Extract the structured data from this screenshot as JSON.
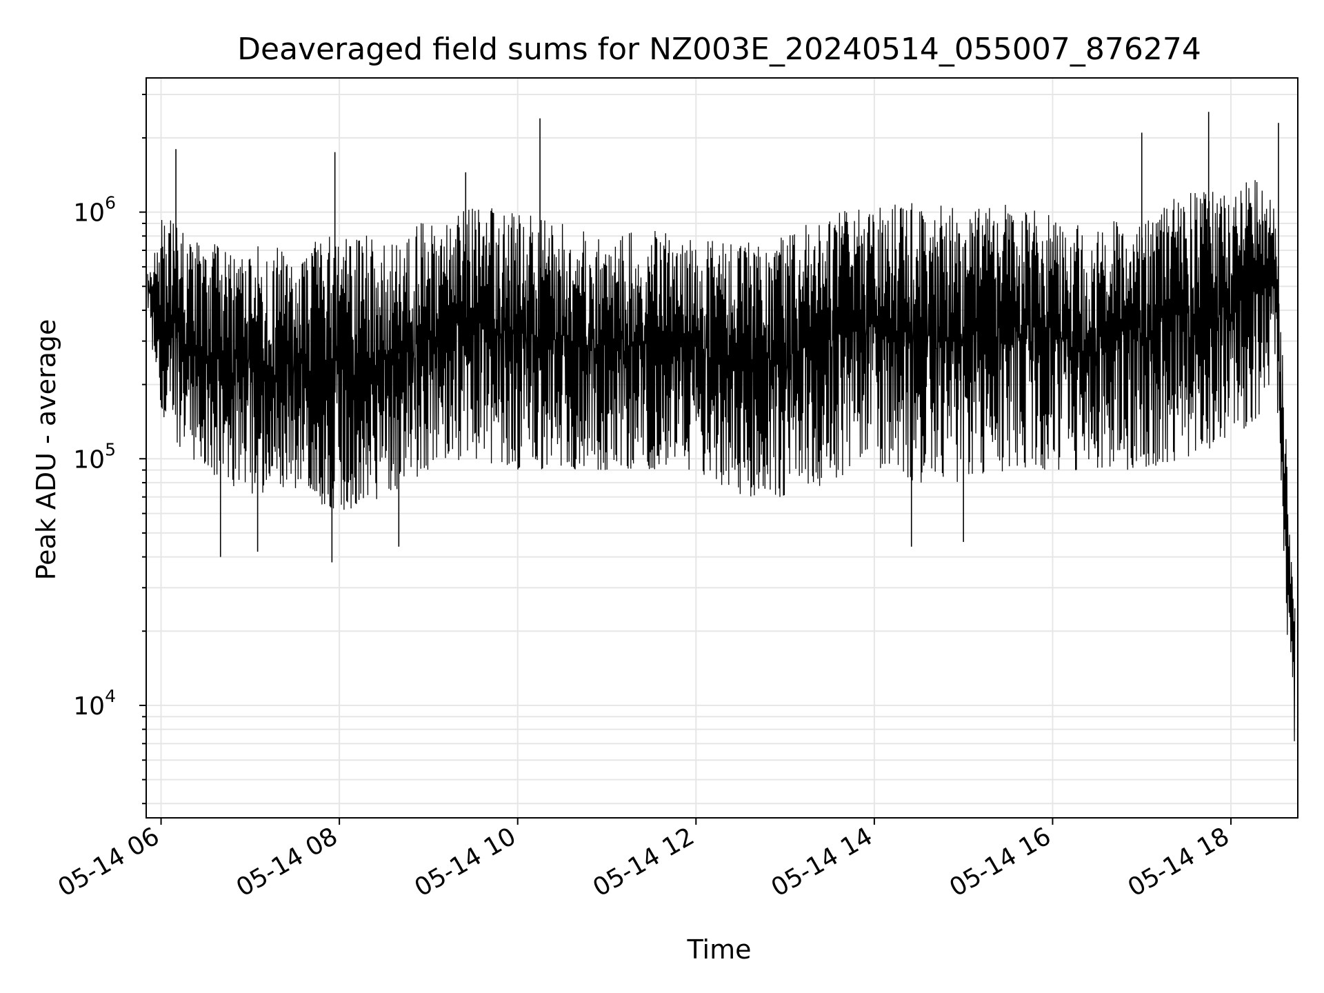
{
  "chart_data": {
    "type": "line",
    "title": "Deaveraged field sums for NZ003E_20240514_055007_876274",
    "xlabel": "Time",
    "ylabel": "Peak ADU - average",
    "yscale": "log",
    "grid": true,
    "x_range": [
      "2024-05-14 05:50",
      "2024-05-14 18:45"
    ],
    "ylim": [
      3500,
      3500000
    ],
    "x_ticks": [
      {
        "time": "2024-05-14 06:00",
        "label": "05-14 06"
      },
      {
        "time": "2024-05-14 08:00",
        "label": "05-14 08"
      },
      {
        "time": "2024-05-14 10:00",
        "label": "05-14 10"
      },
      {
        "time": "2024-05-14 12:00",
        "label": "05-14 12"
      },
      {
        "time": "2024-05-14 14:00",
        "label": "05-14 14"
      },
      {
        "time": "2024-05-14 16:00",
        "label": "05-14 16"
      },
      {
        "time": "2024-05-14 18:00",
        "label": "05-14 18"
      }
    ],
    "y_ticks": [
      {
        "value": 10000,
        "base": "10",
        "exp": "4"
      },
      {
        "value": 100000,
        "base": "10",
        "exp": "5"
      },
      {
        "value": 1000000,
        "base": "10",
        "exp": "6"
      }
    ],
    "line_color": "#000000",
    "series": [
      {
        "x": [
          "2024-05-14 05:51",
          "2024-05-14 06:00",
          "2024-05-14 06:30",
          "2024-05-14 07:00",
          "2024-05-14 07:30",
          "2024-05-14 08:00",
          "2024-05-14 08:30",
          "2024-05-14 09:00",
          "2024-05-14 09:30",
          "2024-05-14 10:00",
          "2024-05-14 10:30",
          "2024-05-14 11:00",
          "2024-05-14 11:30",
          "2024-05-14 12:00",
          "2024-05-14 12:30",
          "2024-05-14 13:00",
          "2024-05-14 13:30",
          "2024-05-14 14:00",
          "2024-05-14 14:30",
          "2024-05-14 15:00",
          "2024-05-14 15:30",
          "2024-05-14 16:00",
          "2024-05-14 16:30",
          "2024-05-14 17:00",
          "2024-05-14 17:30",
          "2024-05-14 18:00",
          "2024-05-14 18:20",
          "2024-05-14 18:30",
          "2024-05-14 18:36",
          "2024-05-14 18:40",
          "2024-05-14 18:43"
        ],
        "low": [
          420000,
          130000,
          90000,
          70000,
          70000,
          60000,
          70000,
          90000,
          100000,
          90000,
          90000,
          90000,
          90000,
          90000,
          70000,
          70000,
          80000,
          90000,
          80000,
          80000,
          90000,
          90000,
          90000,
          90000,
          100000,
          120000,
          150000,
          250000,
          30000,
          12000,
          4500
        ],
        "high": [
          600000,
          1000000,
          750000,
          750000,
          700000,
          850000,
          800000,
          950000,
          1100000,
          1000000,
          900000,
          850000,
          850000,
          800000,
          750000,
          800000,
          1000000,
          1100000,
          1100000,
          1050000,
          1100000,
          1000000,
          850000,
          1100000,
          1200000,
          1300000,
          1400000,
          1000000,
          200000,
          40000,
          35000
        ],
        "spikes": [
          {
            "x": "2024-05-14 06:10",
            "y": 1800000
          },
          {
            "x": "2024-05-14 07:57",
            "y": 1750000
          },
          {
            "x": "2024-05-14 10:15",
            "y": 2400000
          },
          {
            "x": "2024-05-14 09:25",
            "y": 1450000
          },
          {
            "x": "2024-05-14 17:00",
            "y": 2100000
          },
          {
            "x": "2024-05-14 17:45",
            "y": 2550000
          },
          {
            "x": "2024-05-14 18:32",
            "y": 2300000
          },
          {
            "x": "2024-05-14 06:40",
            "y": 40000
          },
          {
            "x": "2024-05-14 07:05",
            "y": 42000
          },
          {
            "x": "2024-05-14 07:55",
            "y": 38000
          },
          {
            "x": "2024-05-14 08:40",
            "y": 44000
          },
          {
            "x": "2024-05-14 14:25",
            "y": 44000
          },
          {
            "x": "2024-05-14 15:00",
            "y": 46000
          }
        ]
      }
    ]
  }
}
